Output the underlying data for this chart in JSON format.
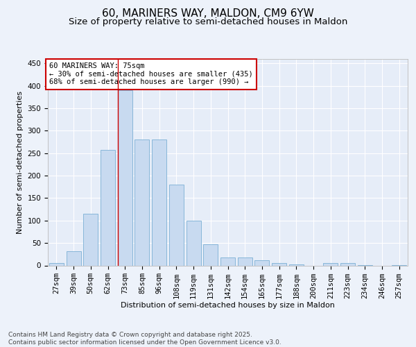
{
  "title": "60, MARINERS WAY, MALDON, CM9 6YW",
  "subtitle": "Size of property relative to semi-detached houses in Maldon",
  "xlabel": "Distribution of semi-detached houses by size in Maldon",
  "ylabel": "Number of semi-detached properties",
  "categories": [
    "27sqm",
    "39sqm",
    "50sqm",
    "62sqm",
    "73sqm",
    "85sqm",
    "96sqm",
    "108sqm",
    "119sqm",
    "131sqm",
    "142sqm",
    "154sqm",
    "165sqm",
    "177sqm",
    "188sqm",
    "200sqm",
    "211sqm",
    "223sqm",
    "234sqm",
    "246sqm",
    "257sqm"
  ],
  "values": [
    5,
    32,
    115,
    258,
    390,
    280,
    280,
    180,
    100,
    47,
    18,
    18,
    12,
    5,
    2,
    0,
    5,
    5,
    1,
    0,
    1
  ],
  "bar_color": "#c8daf0",
  "bar_edge_color": "#7aafd4",
  "vline_color": "#cc0000",
  "annotation_text": "60 MARINERS WAY: 75sqm\n← 30% of semi-detached houses are smaller (435)\n68% of semi-detached houses are larger (990) →",
  "annotation_box_color": "#ffffff",
  "annotation_box_edge_color": "#cc0000",
  "ylim": [
    0,
    460
  ],
  "yticks": [
    0,
    50,
    100,
    150,
    200,
    250,
    300,
    350,
    400,
    450
  ],
  "background_color": "#edf2fa",
  "plot_bg_color": "#e6edf8",
  "footer_text": "Contains HM Land Registry data © Crown copyright and database right 2025.\nContains public sector information licensed under the Open Government Licence v3.0.",
  "title_fontsize": 11,
  "subtitle_fontsize": 9.5,
  "axis_label_fontsize": 8,
  "tick_fontsize": 7.5,
  "annotation_fontsize": 7.5,
  "footer_fontsize": 6.5
}
